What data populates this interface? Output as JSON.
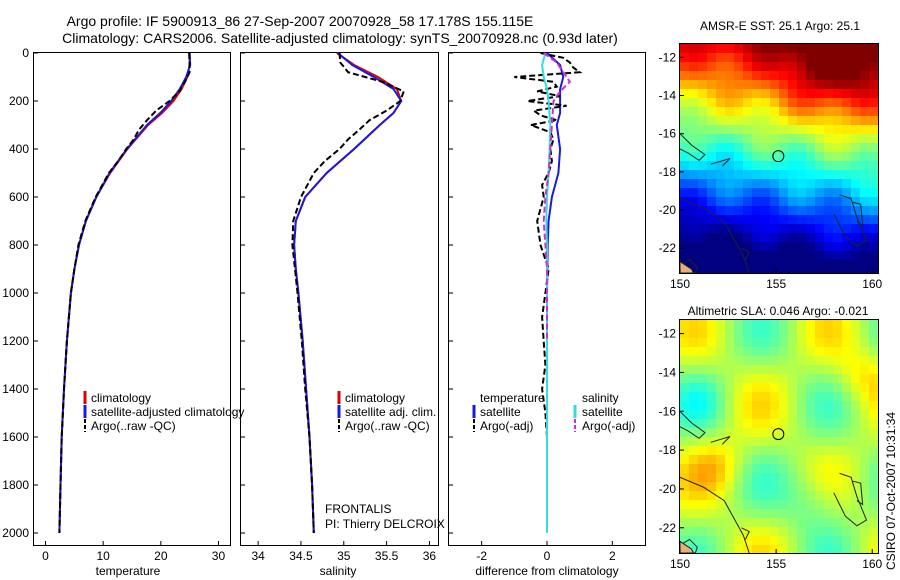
{
  "header": {
    "title_line1": "Argo profile: IF 5900913_86 27-Sep-2007 20070928_58 17.178S 155.115E",
    "title_line2": "Climatology: CARS2006. Satellite-adjusted climatology: synTS_20070928.nc (0.93d later)"
  },
  "footer": {
    "stamp": "CSIRO 07-Oct-2007 10:31:34",
    "pi_label": "FRONTALIS",
    "pi_name": "PI: Thierry DELCROIX"
  },
  "colors": {
    "climatology": "#dd0000",
    "satellite": "#1a1adc",
    "argo": "#000000",
    "salinity_satellite": "#33dddd",
    "salinity_argo": "#cc33cc",
    "coast": "#222222"
  },
  "chart_data": [
    {
      "id": "temperature",
      "type": "line",
      "xlabel": "temperature",
      "ylabel": "",
      "xlim": [
        -2,
        32
      ],
      "ylim": [
        0,
        2050
      ],
      "y_reversed": true,
      "xticks": [
        0,
        10,
        20,
        30
      ],
      "yticks": [
        0,
        200,
        400,
        600,
        800,
        1000,
        1200,
        1400,
        1600,
        1800,
        2000
      ],
      "legend": [
        "climatology",
        "satellite-adjusted climatology",
        "Argo(..raw -QC)"
      ],
      "legend_position": "lower-right",
      "series": [
        {
          "name": "climatology",
          "color_key": "climatology",
          "y": [
            0,
            50,
            100,
            150,
            200,
            250,
            300,
            400,
            500,
            600,
            700,
            800,
            900,
            1000,
            1200,
            1400,
            1600,
            1800,
            2000
          ],
          "x": [
            25.0,
            25.0,
            24.6,
            23.6,
            22.2,
            20.2,
            17.8,
            14.2,
            11.2,
            8.8,
            7.0,
            5.8,
            5.0,
            4.4,
            3.7,
            3.2,
            2.8,
            2.6,
            2.4
          ]
        },
        {
          "name": "satellite-adjusted climatology",
          "color_key": "satellite",
          "y": [
            0,
            50,
            100,
            150,
            200,
            250,
            300,
            400,
            500,
            600,
            700,
            800,
            900,
            1000,
            1200,
            1400,
            1600,
            1800,
            2000
          ],
          "x": [
            25.0,
            25.1,
            24.4,
            23.3,
            21.8,
            19.9,
            17.6,
            14.1,
            11.1,
            8.8,
            7.0,
            5.8,
            5.0,
            4.4,
            3.7,
            3.2,
            2.8,
            2.6,
            2.4
          ]
        },
        {
          "name": "Argo(..raw -QC)",
          "color_key": "argo",
          "dashed": true,
          "y": [
            0,
            40,
            80,
            120,
            160,
            200,
            240,
            280,
            320,
            360,
            400,
            450,
            500,
            600,
            700,
            800,
            900,
            1000,
            1200,
            1400,
            1600,
            1800,
            2000
          ],
          "x": [
            24.9,
            25.0,
            25.0,
            24.2,
            23.2,
            21.5,
            19.2,
            17.6,
            16.2,
            15.3,
            14.0,
            12.6,
            11.0,
            8.7,
            6.9,
            5.7,
            5.0,
            4.4,
            3.7,
            3.2,
            2.8,
            2.6,
            2.4
          ]
        }
      ]
    },
    {
      "id": "salinity",
      "type": "line",
      "xlabel": "salinity",
      "ylabel": "",
      "xlim": [
        33.8,
        36.1
      ],
      "ylim": [
        0,
        2050
      ],
      "y_reversed": true,
      "xticks": [
        34,
        34.5,
        35,
        35.5,
        36
      ],
      "legend": [
        "climatology",
        "satellite adj. clim.",
        "Argo(..raw -QC)"
      ],
      "legend_position": "lower-right",
      "series": [
        {
          "name": "climatology",
          "color_key": "climatology",
          "y": [
            0,
            50,
            100,
            150,
            200,
            250,
            300,
            400,
            500,
            600,
            700,
            800,
            900,
            1000,
            1200,
            1400,
            1600,
            1800,
            2000
          ],
          "x": [
            34.92,
            35.12,
            35.4,
            35.62,
            35.67,
            35.58,
            35.42,
            35.12,
            34.8,
            34.55,
            34.44,
            34.42,
            34.44,
            34.47,
            34.52,
            34.56,
            34.6,
            34.63,
            34.65
          ]
        },
        {
          "name": "satellite adj. clim.",
          "color_key": "satellite",
          "y": [
            0,
            50,
            100,
            150,
            200,
            250,
            300,
            400,
            500,
            600,
            700,
            800,
            900,
            1000,
            1200,
            1400,
            1600,
            1800,
            2000
          ],
          "x": [
            34.93,
            35.1,
            35.35,
            35.58,
            35.67,
            35.58,
            35.42,
            35.12,
            34.8,
            34.55,
            34.44,
            34.42,
            34.44,
            34.47,
            34.52,
            34.56,
            34.6,
            34.63,
            34.65
          ]
        },
        {
          "name": "Argo(..raw -QC)",
          "color_key": "argo",
          "dashed": true,
          "y": [
            0,
            40,
            80,
            120,
            160,
            200,
            240,
            280,
            320,
            360,
            400,
            450,
            500,
            600,
            700,
            800,
            900,
            1000,
            1200,
            1400,
            1600,
            1800,
            2000
          ],
          "x": [
            34.95,
            34.96,
            35.05,
            35.45,
            35.7,
            35.66,
            35.5,
            35.3,
            35.18,
            35.05,
            34.95,
            34.78,
            34.65,
            34.5,
            34.41,
            34.4,
            34.43,
            34.46,
            34.51,
            34.55,
            34.6,
            34.63,
            34.65
          ]
        }
      ]
    },
    {
      "id": "difference",
      "type": "line",
      "xlabel": "difference from climatology",
      "ylabel": "",
      "xlim": [
        -3,
        3
      ],
      "ylim": [
        0,
        2050
      ],
      "y_reversed": true,
      "xticks": [
        -2,
        0,
        2
      ],
      "legend_headers": [
        "temperature",
        "salinity"
      ],
      "legend": [
        "satellite",
        "Argo(-adj)",
        "satellite",
        "Argo(-adj)"
      ],
      "legend_position": "lower",
      "series": [
        {
          "name": "temperature satellite",
          "color_key": "satellite",
          "y": [
            0,
            50,
            100,
            150,
            200,
            250,
            300,
            400,
            500,
            600,
            700,
            800,
            1000,
            1200,
            1400,
            1600,
            1800,
            2000
          ],
          "x": [
            0.0,
            0.4,
            0.5,
            0.4,
            0.4,
            0.4,
            0.3,
            0.4,
            0.35,
            0.15,
            0.05,
            0.02,
            0.0,
            0.0,
            0.0,
            0.0,
            0.0,
            0.0
          ]
        },
        {
          "name": "temperature Argo(-adj)",
          "color_key": "argo",
          "dashed": true,
          "y": [
            0,
            20,
            40,
            60,
            80,
            100,
            120,
            140,
            160,
            180,
            200,
            220,
            240,
            260,
            280,
            300,
            330,
            360,
            400,
            450,
            500,
            550,
            600,
            700,
            800,
            900,
            1000,
            1100,
            1200,
            1300,
            1400,
            1500,
            1600,
            1800,
            2000
          ],
          "x": [
            -0.2,
            0.5,
            0.7,
            0.8,
            1.0,
            -1.0,
            0.2,
            0.3,
            -0.3,
            0.4,
            -0.6,
            0.6,
            -0.4,
            -0.2,
            0.3,
            -0.5,
            0.1,
            0.2,
            0.1,
            0.15,
            0.05,
            -0.15,
            -0.1,
            -0.3,
            -0.2,
            0.05,
            -0.05,
            -0.15,
            -0.1,
            -0.05,
            -0.15,
            -0.05,
            0.0,
            0.0,
            0.0
          ]
        },
        {
          "name": "salinity satellite",
          "color_key": "salinity_satellite",
          "y": [
            0,
            50,
            100,
            150,
            200,
            300,
            400,
            500,
            600,
            700,
            800,
            1000,
            1200,
            1400,
            1600,
            1800,
            2000
          ],
          "x": [
            -0.05,
            -0.15,
            -0.1,
            0.0,
            0.05,
            0.1,
            0.08,
            0.05,
            0.0,
            -0.02,
            0.0,
            0.0,
            0.0,
            0.0,
            0.0,
            0.0,
            0.0
          ]
        },
        {
          "name": "salinity Argo(-adj)",
          "color_key": "salinity_argo",
          "dashed": true,
          "y": [
            0,
            40,
            80,
            120,
            160,
            200,
            300,
            400,
            500,
            600,
            700,
            800,
            900,
            1000,
            1100,
            1200
          ],
          "x": [
            -0.1,
            0.3,
            0.5,
            0.7,
            0.4,
            0.2,
            0.15,
            0.1,
            0.05,
            -0.05,
            -0.1,
            -0.05,
            0.0,
            0.0,
            0.0,
            0.0
          ]
        }
      ]
    },
    {
      "id": "sst_map",
      "type": "heatmap",
      "title": "AMSR-E SST: 25.1 Argo: 25.1",
      "xlim": [
        150,
        160.3
      ],
      "ylim": [
        -23.3,
        -11.3
      ],
      "xticks": [
        150,
        155,
        160
      ],
      "yticks": [
        -12,
        -14,
        -16,
        -18,
        -20,
        -22
      ],
      "profile_marker": {
        "lon": 155.115,
        "lat": -17.178
      },
      "field": "sst"
    },
    {
      "id": "sla_map",
      "type": "heatmap",
      "title": "Altimetric SLA: 0.046 Argo: -0.021",
      "xlim": [
        150,
        160.3
      ],
      "ylim": [
        -23.3,
        -11.3
      ],
      "xticks": [
        150,
        155,
        160
      ],
      "yticks": [
        -12,
        -14,
        -16,
        -18,
        -20,
        -22
      ],
      "profile_marker": {
        "lon": 155.115,
        "lat": -17.178
      },
      "field": "sla"
    }
  ]
}
